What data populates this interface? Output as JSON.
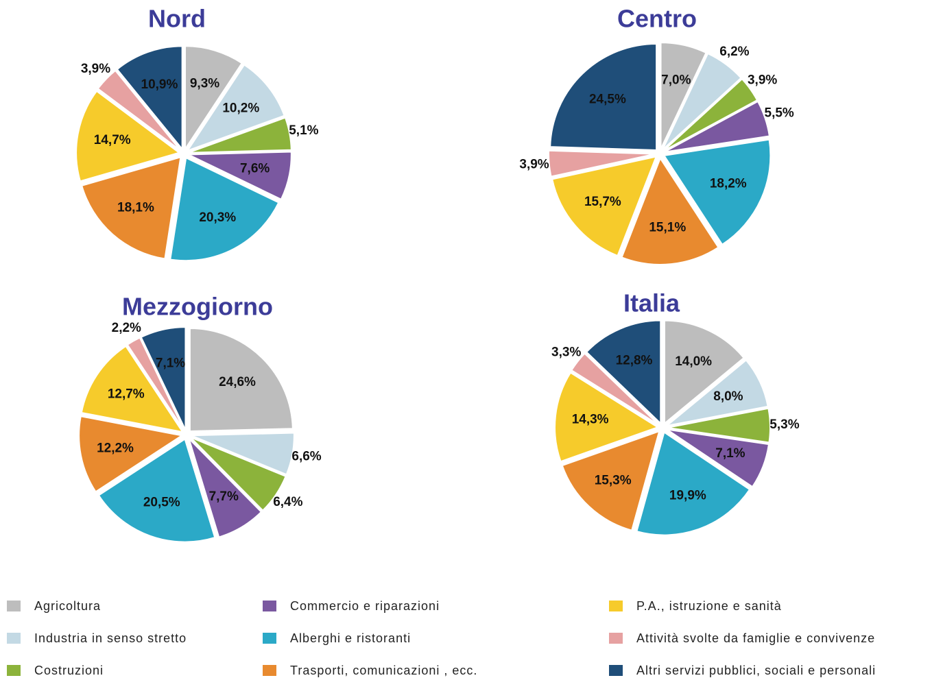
{
  "legend": {
    "labels": [
      "Agricoltura",
      "Industria in senso stretto",
      "Costruzioni",
      "Commercio e riparazioni",
      "Alberghi e ristoranti",
      "Trasporti, comunicazioni , ecc.",
      "P.A., istruzione e sanità",
      "Attività svolte da famiglie e convivenze",
      "Altri servizi pubblici, sociali e personali"
    ],
    "colors": [
      "#bdbdbd",
      "#c3d9e4",
      "#8cb33b",
      "#7a58a0",
      "#2ba9c7",
      "#e88a2f",
      "#f6cb2b",
      "#e6a1a1",
      "#1f4e79"
    ]
  },
  "chart_data": [
    {
      "type": "pie",
      "title": "Nord",
      "values": [
        9.3,
        10.2,
        5.1,
        7.6,
        20.3,
        18.1,
        14.7,
        3.9,
        10.9
      ],
      "value_labels": [
        "9,3%",
        "10,2%",
        "5,1%",
        "7,6%",
        "20,3%",
        "18,1%",
        "14,7%",
        "3,9%",
        "10,9%"
      ]
    },
    {
      "type": "pie",
      "title": "Centro",
      "values": [
        7.0,
        6.2,
        3.9,
        5.5,
        18.2,
        15.1,
        15.7,
        3.9,
        24.5
      ],
      "value_labels": [
        "7,0%",
        "6,2%",
        "3,9%",
        "5,5%",
        "18,2%",
        "15,1%",
        "15,7%",
        "3,9%",
        "24,5%"
      ]
    },
    {
      "type": "pie",
      "title": "Mezzogiorno",
      "values": [
        24.6,
        6.6,
        6.4,
        7.7,
        20.5,
        12.2,
        12.7,
        2.2,
        7.1
      ],
      "value_labels": [
        "24,6%",
        "6,6%",
        "6,4%",
        "7,7%",
        "20,5%",
        "12,2%",
        "12,7%",
        "2,2%",
        "7,1%"
      ]
    },
    {
      "type": "pie",
      "title": "Italia",
      "values": [
        14.0,
        8.0,
        5.3,
        7.1,
        19.9,
        15.3,
        14.3,
        3.3,
        12.8
      ],
      "value_labels": [
        "14,0%",
        "8,0%",
        "5,3%",
        "7,1%",
        "19,9%",
        "15,3%",
        "14,3%",
        "3,3%",
        "12,8%"
      ]
    }
  ]
}
